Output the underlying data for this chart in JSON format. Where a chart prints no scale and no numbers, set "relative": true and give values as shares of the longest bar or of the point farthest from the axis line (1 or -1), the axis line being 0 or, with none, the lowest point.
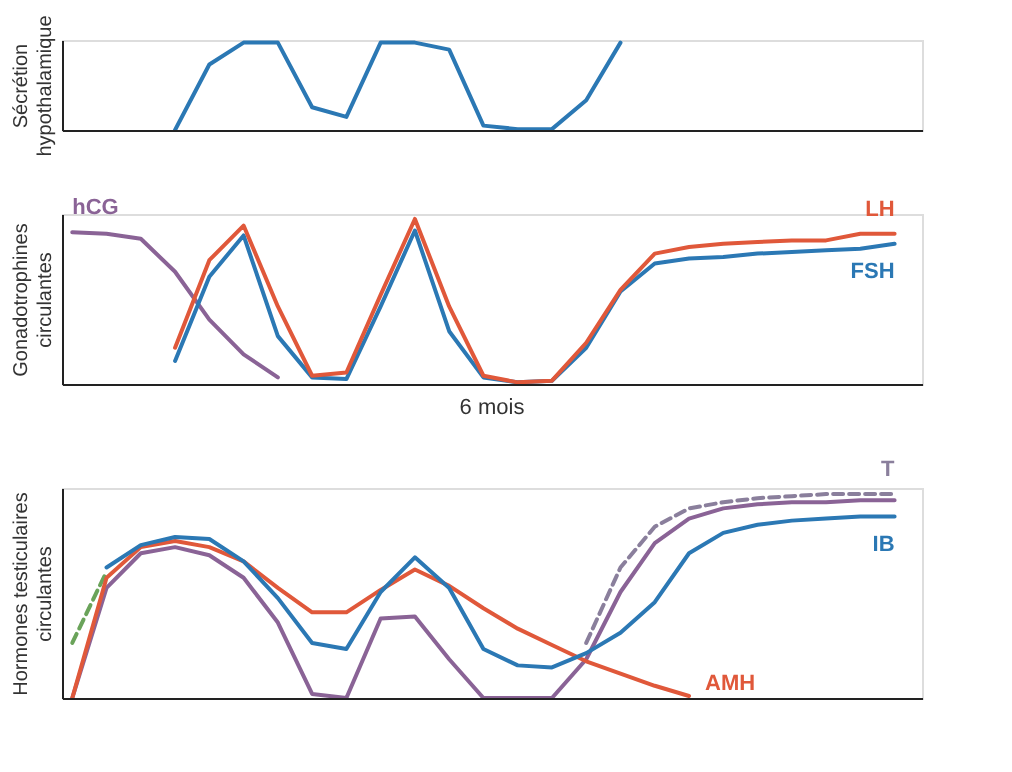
{
  "chart_data": [
    {
      "type": "line",
      "relative": true,
      "ylabel": "Sécrétion hypothalamique",
      "tick_labels": false,
      "grid": false,
      "marker": "none",
      "categories": [
        null,
        null,
        null,
        null,
        null,
        null,
        null,
        null,
        null,
        null,
        null,
        null,
        null,
        null,
        null,
        null,
        null,
        null,
        null,
        null,
        null,
        null,
        null,
        null,
        null
      ],
      "series": [
        {
          "color": "#2b78b4",
          "line_style": "solid",
          "values": [
            null,
            null,
            null,
            0.0,
            0.75,
            1,
            1,
            0.26,
            0.15,
            1,
            1,
            0.92,
            0.05,
            0.01,
            0.01,
            0.34,
            1,
            null,
            null,
            null,
            null,
            null,
            null,
            null,
            null
          ]
        }
      ]
    },
    {
      "type": "line",
      "relative": true,
      "ylabel": "Gonadotrophines circulantes",
      "tick_labels": false,
      "grid": false,
      "marker": "none",
      "annotations": [
        "6 mois"
      ],
      "categories": [
        null,
        null,
        null,
        null,
        null,
        null,
        null,
        null,
        null,
        null,
        null,
        null,
        null,
        null,
        null,
        null,
        null,
        null,
        null,
        null,
        null,
        null,
        null,
        null,
        null
      ],
      "series": [
        {
          "name": "hCG",
          "color": "#8a6396",
          "line_style": "solid",
          "values": [
            0.92,
            0.91,
            0.88,
            0.68,
            0.39,
            0.18,
            0.04,
            null,
            null,
            null,
            null,
            null,
            null,
            null,
            null,
            null,
            null,
            null,
            null,
            null,
            null,
            null,
            null,
            null,
            null
          ]
        },
        {
          "name": "FSH",
          "color": "#2b78b4",
          "line_style": "solid",
          "values": [
            null,
            null,
            null,
            0.14,
            0.65,
            0.9,
            0.29,
            0.04,
            0.03,
            0.47,
            0.93,
            0.32,
            0.04,
            0.01,
            0.02,
            0.22,
            0.56,
            0.73,
            0.76,
            0.77,
            0.79,
            0.8,
            0.81,
            0.82,
            0.85
          ]
        },
        {
          "name": "LH",
          "color": "#e0583a",
          "line_style": "solid",
          "values": [
            null,
            null,
            null,
            0.22,
            0.75,
            0.96,
            0.47,
            0.05,
            0.07,
            0.54,
            1.0,
            0.47,
            0.05,
            0.01,
            0.02,
            0.25,
            0.57,
            0.79,
            0.83,
            0.85,
            0.86,
            0.87,
            0.87,
            0.91,
            0.91
          ]
        }
      ]
    },
    {
      "type": "line",
      "relative": true,
      "ylabel": "Hormones testiculaires circulantes",
      "tick_labels": false,
      "grid": false,
      "marker": "none",
      "categories": [
        null,
        null,
        null,
        null,
        null,
        null,
        null,
        null,
        null,
        null,
        null,
        null,
        null,
        null,
        null,
        null,
        null,
        null,
        null,
        null,
        null,
        null,
        null,
        null,
        null
      ],
      "series": [
        {
          "color": "#6aa35a",
          "line_style": "dashed",
          "values": [
            0.27,
            0.62,
            null,
            null,
            null,
            null,
            null,
            null,
            null,
            null,
            null,
            null,
            null,
            null,
            null,
            null,
            null,
            null,
            null,
            null,
            null,
            null,
            null,
            null,
            null
          ]
        },
        {
          "color": "#8a6396",
          "line_style": "solid",
          "values": [
            0.0,
            0.54,
            0.71,
            0.74,
            0.7,
            0.59,
            0.37,
            0.02,
            0.0,
            0.39,
            0.4,
            0.19,
            0.0,
            0.0,
            0.0,
            0.19,
            0.52,
            0.76,
            0.88,
            0.93,
            0.95,
            0.96,
            0.96,
            0.97,
            0.97
          ]
        },
        {
          "name": "AMH",
          "color": "#e0583a",
          "line_style": "solid",
          "values": [
            0.0,
            0.59,
            0.74,
            0.77,
            0.74,
            0.67,
            0.54,
            0.42,
            0.42,
            0.53,
            0.63,
            0.55,
            0.44,
            0.34,
            0.26,
            0.18,
            0.12,
            0.06,
            0.01,
            null,
            null,
            null,
            null,
            null,
            null
          ]
        },
        {
          "name": "IB",
          "color": "#2b78b4",
          "line_style": "solid",
          "values": [
            null,
            0.64,
            0.75,
            0.79,
            0.78,
            0.67,
            0.49,
            0.27,
            0.24,
            0.52,
            0.69,
            0.54,
            0.24,
            0.16,
            0.15,
            0.22,
            0.32,
            0.47,
            0.71,
            0.81,
            0.85,
            0.87,
            0.88,
            0.89,
            0.89
          ]
        },
        {
          "name": "T",
          "color": "#8a7f9c",
          "line_style": "dashed",
          "values": [
            null,
            null,
            null,
            null,
            null,
            null,
            null,
            null,
            null,
            null,
            null,
            null,
            null,
            null,
            null,
            0.27,
            0.64,
            0.84,
            0.93,
            0.96,
            0.98,
            0.99,
            1.0,
            1.0,
            1.0
          ]
        }
      ]
    }
  ]
}
